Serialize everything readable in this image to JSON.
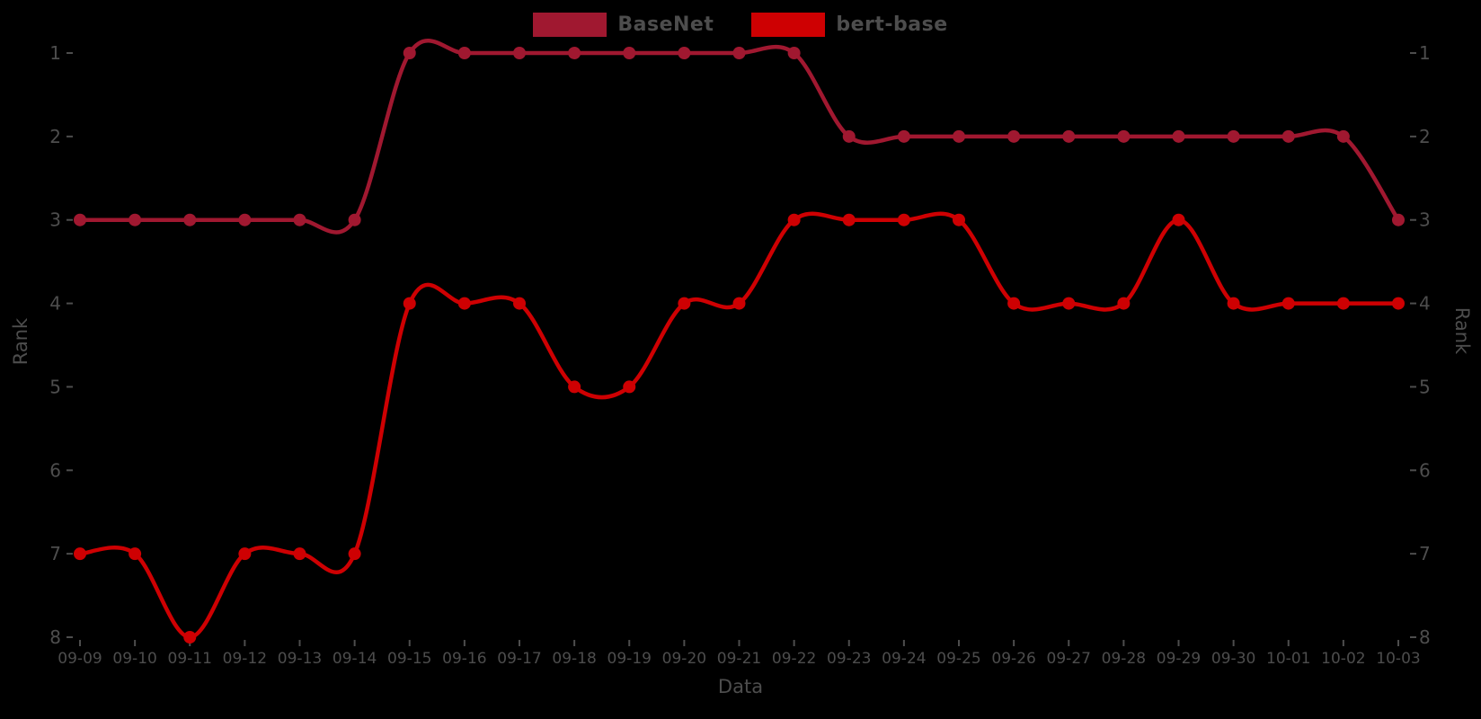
{
  "chart_data": {
    "type": "line",
    "title": "",
    "xlabel": "Data",
    "ylabel_left": "Rank",
    "ylabel_right": "Rank",
    "y_axis_inverted": true,
    "y_ticks": [
      1,
      2,
      3,
      4,
      5,
      6,
      7,
      8
    ],
    "ylim": [
      1,
      8
    ],
    "grid": false,
    "legend_position": "top-center",
    "background_color": "#000000",
    "text_color": "#4d4d4d",
    "x": [
      "09-09",
      "09-10",
      "09-11",
      "09-12",
      "09-13",
      "09-14",
      "09-15",
      "09-16",
      "09-17",
      "09-18",
      "09-19",
      "09-20",
      "09-21",
      "09-22",
      "09-23",
      "09-24",
      "09-25",
      "09-26",
      "09-27",
      "09-28",
      "09-29",
      "09-30",
      "10-01",
      "10-02",
      "10-03"
    ],
    "series": [
      {
        "name": "BaseNet",
        "color": "#A01830",
        "marker": "circle",
        "values": [
          3,
          3,
          3,
          3,
          3,
          3,
          1,
          1,
          1,
          1,
          1,
          1,
          1,
          1,
          2,
          2,
          2,
          2,
          2,
          2,
          2,
          2,
          2,
          2,
          3
        ]
      },
      {
        "name": "bert-base",
        "color": "#CE0002",
        "marker": "circle",
        "values": [
          7,
          7,
          8,
          7,
          7,
          7,
          4,
          4,
          4,
          5,
          5,
          4,
          4,
          3,
          3,
          3,
          3,
          4,
          4,
          4,
          3,
          4,
          4,
          4,
          4
        ]
      }
    ]
  }
}
